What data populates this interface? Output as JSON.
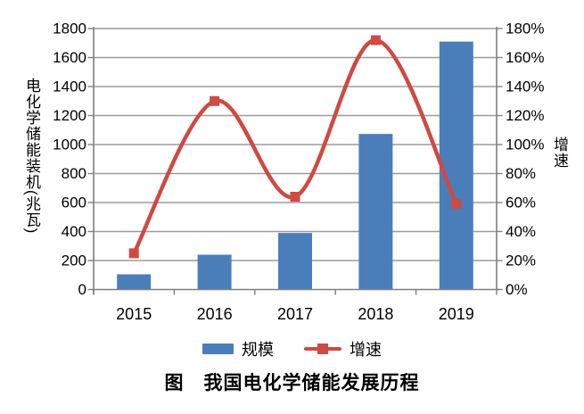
{
  "figure_title": "图　我国电化学储能发展历程",
  "chart_data": {
    "type": "combo-bar-line",
    "categories": [
      "2015",
      "2016",
      "2017",
      "2018",
      "2019"
    ],
    "series": [
      {
        "name": "规模",
        "type": "bar",
        "axis": "left",
        "values": [
          105,
          240,
          390,
          1073,
          1710
        ],
        "unit": "兆瓦",
        "color": "#4a7ebb"
      },
      {
        "name": "增速",
        "type": "line",
        "axis": "right",
        "values": [
          25,
          130,
          64,
          172,
          59
        ],
        "unit": "%",
        "color": "#ce4a42",
        "marker": "square",
        "smooth": true
      }
    ],
    "left_axis": {
      "title": "电化学储能装机(兆瓦)",
      "min": 0,
      "max": 1800,
      "step": 200,
      "ticks": [
        "0",
        "200",
        "400",
        "600",
        "800",
        "1000",
        "1200",
        "1400",
        "1600",
        "1800"
      ]
    },
    "right_axis": {
      "title": "增速",
      "min": 0,
      "max": 180,
      "step": 20,
      "ticks": [
        "0%",
        "20%",
        "40%",
        "60%",
        "80%",
        "100%",
        "120%",
        "140%",
        "160%",
        "180%"
      ]
    },
    "grid": "horizontal",
    "legend_position": "bottom",
    "colors": {
      "grid": "#9b9b9b",
      "axis": "#7f7f7f",
      "text": "#000000",
      "background": "#ffffff"
    }
  }
}
